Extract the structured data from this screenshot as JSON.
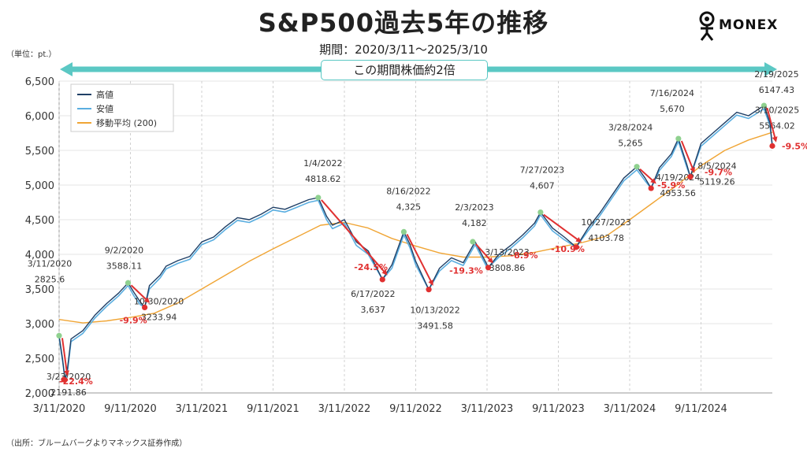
{
  "header": {
    "title": "S&P500過去5年の推移",
    "period": "期間：2020/3/11〜2025/3/10",
    "unit": "（単位：pt.）",
    "source": "（出所：ブルームバーグよりマネックス証券作成）",
    "logo_text": "MONEX",
    "banner": "この期間株価約2倍"
  },
  "colors": {
    "high": "#1f3f66",
    "low": "#5aaee0",
    "ma": "#f0a535",
    "peak": "#8fd18f",
    "trough": "#e03030",
    "arrow": "#e03030",
    "drop_text": "#e03030",
    "banner": "#5bc8c4"
  },
  "chart_data": {
    "type": "line",
    "x_ticks": [
      "3/11/2020",
      "9/11/2020",
      "3/11/2021",
      "9/11/2021",
      "3/11/2022",
      "9/11/2022",
      "3/11/2023",
      "9/11/2023",
      "3/11/2024",
      "9/11/2024"
    ],
    "y_ticks": [
      "2,000",
      "2,500",
      "3,000",
      "3,500",
      "4,000",
      "4,500",
      "5,000",
      "5,500",
      "6,000",
      "6,500"
    ],
    "ylim": [
      2000,
      6500
    ],
    "legend": [
      "高値",
      "安値",
      "移動平均 (200)"
    ],
    "legend_position": "top-left",
    "series": [
      {
        "name": "高値",
        "values": [
          [
            0,
            2826
          ],
          [
            0.3,
            2480
          ],
          [
            0.5,
            2192
          ],
          [
            0.7,
            2350
          ],
          [
            1,
            2780
          ],
          [
            2,
            2900
          ],
          [
            3,
            3120
          ],
          [
            4,
            3290
          ],
          [
            5,
            3440
          ],
          [
            5.8,
            3588
          ],
          [
            6.3,
            3450
          ],
          [
            6.8,
            3320
          ],
          [
            7.2,
            3234
          ],
          [
            7.6,
            3550
          ],
          [
            8.5,
            3700
          ],
          [
            9,
            3830
          ],
          [
            10,
            3910
          ],
          [
            11,
            3970
          ],
          [
            12,
            4180
          ],
          [
            13,
            4250
          ],
          [
            14,
            4400
          ],
          [
            15,
            4530
          ],
          [
            16,
            4500
          ],
          [
            17,
            4580
          ],
          [
            18,
            4680
          ],
          [
            19,
            4650
          ],
          [
            20,
            4720
          ],
          [
            21,
            4790
          ],
          [
            21.8,
            4819
          ],
          [
            22.5,
            4550
          ],
          [
            23,
            4420
          ],
          [
            24,
            4500
          ],
          [
            25,
            4180
          ],
          [
            26,
            4050
          ],
          [
            27.2,
            3637
          ],
          [
            28,
            3850
          ],
          [
            29,
            4325
          ],
          [
            29.5,
            4150
          ],
          [
            30,
            3900
          ],
          [
            31.1,
            3492
          ],
          [
            32,
            3800
          ],
          [
            33,
            3950
          ],
          [
            34,
            3880
          ],
          [
            35,
            4182
          ],
          [
            36,
            3850
          ],
          [
            36.1,
            3809
          ],
          [
            37,
            4000
          ],
          [
            38,
            4130
          ],
          [
            39,
            4280
          ],
          [
            40,
            4450
          ],
          [
            40.5,
            4607
          ],
          [
            41.5,
            4380
          ],
          [
            42.5,
            4250
          ],
          [
            43.5,
            4104
          ],
          [
            44.5,
            4380
          ],
          [
            45.5,
            4600
          ],
          [
            46.5,
            4850
          ],
          [
            47.5,
            5100
          ],
          [
            48.6,
            5265
          ],
          [
            49.3,
            5100
          ],
          [
            49.8,
            4954
          ],
          [
            50.5,
            5250
          ],
          [
            51.5,
            5450
          ],
          [
            52.1,
            5670
          ],
          [
            52.8,
            5300
          ],
          [
            53.1,
            5119
          ],
          [
            54,
            5600
          ],
          [
            55,
            5750
          ],
          [
            56,
            5900
          ],
          [
            57,
            6050
          ],
          [
            58,
            6000
          ],
          [
            59.3,
            6147
          ],
          [
            59.8,
            5900
          ],
          [
            60,
            5564
          ]
        ]
      },
      {
        "name": "安値",
        "values": [
          [
            0,
            2800
          ],
          [
            0.3,
            2450
          ],
          [
            0.5,
            2192
          ],
          [
            0.7,
            2300
          ],
          [
            1,
            2740
          ],
          [
            2,
            2860
          ],
          [
            3,
            3080
          ],
          [
            4,
            3250
          ],
          [
            5,
            3400
          ],
          [
            5.8,
            3550
          ],
          [
            6.3,
            3400
          ],
          [
            6.8,
            3280
          ],
          [
            7.2,
            3234
          ],
          [
            7.6,
            3500
          ],
          [
            8.5,
            3660
          ],
          [
            9,
            3790
          ],
          [
            10,
            3870
          ],
          [
            11,
            3930
          ],
          [
            12,
            4140
          ],
          [
            13,
            4210
          ],
          [
            14,
            4360
          ],
          [
            15,
            4490
          ],
          [
            16,
            4460
          ],
          [
            17,
            4540
          ],
          [
            18,
            4640
          ],
          [
            19,
            4610
          ],
          [
            20,
            4680
          ],
          [
            21,
            4750
          ],
          [
            21.8,
            4780
          ],
          [
            22.5,
            4500
          ],
          [
            23,
            4370
          ],
          [
            24,
            4450
          ],
          [
            25,
            4130
          ],
          [
            26,
            4000
          ],
          [
            27.2,
            3637
          ],
          [
            28,
            3800
          ],
          [
            29,
            4280
          ],
          [
            29.5,
            4100
          ],
          [
            30,
            3850
          ],
          [
            31.1,
            3492
          ],
          [
            32,
            3760
          ],
          [
            33,
            3910
          ],
          [
            34,
            3840
          ],
          [
            35,
            4140
          ],
          [
            36,
            3810
          ],
          [
            36.1,
            3809
          ],
          [
            37,
            3960
          ],
          [
            38,
            4090
          ],
          [
            39,
            4240
          ],
          [
            40,
            4410
          ],
          [
            40.5,
            4570
          ],
          [
            41.5,
            4340
          ],
          [
            42.5,
            4210
          ],
          [
            43.5,
            4104
          ],
          [
            44.5,
            4340
          ],
          [
            45.5,
            4560
          ],
          [
            46.5,
            4810
          ],
          [
            47.5,
            5060
          ],
          [
            48.6,
            5220
          ],
          [
            49.3,
            5060
          ],
          [
            49.8,
            4954
          ],
          [
            50.5,
            5210
          ],
          [
            51.5,
            5410
          ],
          [
            52.1,
            5630
          ],
          [
            52.8,
            5260
          ],
          [
            53.1,
            5119
          ],
          [
            54,
            5560
          ],
          [
            55,
            5710
          ],
          [
            56,
            5860
          ],
          [
            57,
            6010
          ],
          [
            58,
            5960
          ],
          [
            59.3,
            6100
          ],
          [
            59.8,
            5860
          ],
          [
            60,
            5564
          ]
        ]
      },
      {
        "name": "移動平均 (200)",
        "values": [
          [
            0,
            3060
          ],
          [
            2,
            3010
          ],
          [
            4,
            3040
          ],
          [
            6,
            3090
          ],
          [
            8,
            3150
          ],
          [
            10,
            3300
          ],
          [
            12,
            3500
          ],
          [
            14,
            3700
          ],
          [
            16,
            3900
          ],
          [
            18,
            4080
          ],
          [
            20,
            4250
          ],
          [
            22,
            4420
          ],
          [
            24,
            4460
          ],
          [
            26,
            4380
          ],
          [
            28,
            4230
          ],
          [
            30,
            4120
          ],
          [
            32,
            4020
          ],
          [
            34,
            3960
          ],
          [
            36,
            3960
          ],
          [
            38,
            3980
          ],
          [
            40,
            4030
          ],
          [
            42,
            4100
          ],
          [
            44,
            4170
          ],
          [
            46,
            4260
          ],
          [
            48,
            4500
          ],
          [
            50,
            4750
          ],
          [
            52,
            5000
          ],
          [
            54,
            5280
          ],
          [
            56,
            5500
          ],
          [
            58,
            5650
          ],
          [
            60,
            5760
          ]
        ]
      }
    ],
    "annotations": [
      {
        "date": "3/11/2020",
        "value": "2825.6",
        "kind": "peak",
        "x": 0,
        "y": 2826
      },
      {
        "date": "3/23/2020",
        "value": "2191.86",
        "kind": "trough",
        "x": 0.4,
        "y": 2192,
        "drop": "-22.4%"
      },
      {
        "date": "9/2/2020",
        "value": "3588.11",
        "kind": "peak",
        "x": 5.8,
        "y": 3588
      },
      {
        "date": "10/30/2020",
        "value": "3233.94",
        "kind": "trough",
        "x": 7.2,
        "y": 3234,
        "drop": "-9.9%"
      },
      {
        "date": "1/4/2022",
        "value": "4818.62",
        "kind": "peak",
        "x": 21.8,
        "y": 4819
      },
      {
        "date": "6/17/2022",
        "value": "3,637",
        "kind": "trough",
        "x": 27.2,
        "y": 3637,
        "drop": "-24.5%"
      },
      {
        "date": "8/16/2022",
        "value": "4,325",
        "kind": "peak",
        "x": 29,
        "y": 4325
      },
      {
        "date": "10/13/2022",
        "value": "3491.58",
        "kind": "trough",
        "x": 31.1,
        "y": 3492,
        "drop": "-19.3%"
      },
      {
        "date": "2/3/2023",
        "value": "4,182",
        "kind": "peak",
        "x": 34.8,
        "y": 4182
      },
      {
        "date": "3/13/2023",
        "value": "3808.86",
        "kind": "trough",
        "x": 36.1,
        "y": 3809,
        "drop": "-8.9%"
      },
      {
        "date": "7/27/2023",
        "value": "4,607",
        "kind": "peak",
        "x": 40.5,
        "y": 4607
      },
      {
        "date": "10/27/2023",
        "value": "4103.78",
        "kind": "trough",
        "x": 43.5,
        "y": 4104,
        "drop": "-10.9%"
      },
      {
        "date": "3/28/2024",
        "value": "5,265",
        "kind": "peak",
        "x": 48.6,
        "y": 5265
      },
      {
        "date": "4/19/2024",
        "value": "4953.56",
        "kind": "trough",
        "x": 49.8,
        "y": 4954,
        "drop": "-5.9%"
      },
      {
        "date": "7/16/2024",
        "value": "5,670",
        "kind": "peak",
        "x": 52.1,
        "y": 5670
      },
      {
        "date": "8/5/2024",
        "value": "5119.26",
        "kind": "trough",
        "x": 53.1,
        "y": 5119,
        "drop": "-9.7%"
      },
      {
        "date": "2/19/2025",
        "value": "6147.43",
        "kind": "peak",
        "x": 59.3,
        "y": 6147
      },
      {
        "date": "3/10/2025",
        "value": "5564.02",
        "kind": "trough",
        "x": 60,
        "y": 5564,
        "drop": "-9.5%"
      }
    ]
  }
}
